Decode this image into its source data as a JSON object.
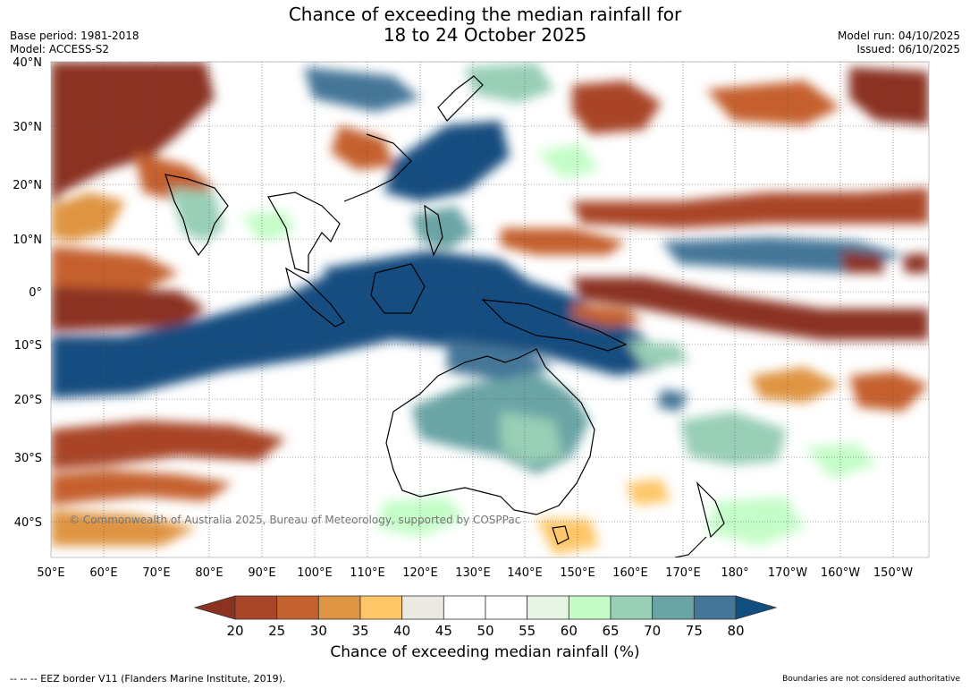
{
  "title": {
    "line1": "Chance of exceeding the median rainfall for",
    "line2": "18 to 24 October 2025"
  },
  "meta_left": {
    "base_period": "Base period: 1981-2018",
    "model": "Model: ACCESS-S2"
  },
  "meta_right": {
    "model_run": "Model run: 04/10/2025",
    "issued": "Issued: 06/10/2025"
  },
  "map": {
    "lat_labels": [
      "40°N",
      "30°N",
      "20°N",
      "10°N",
      "0°",
      "10°S",
      "20°S",
      "30°S",
      "40°S"
    ],
    "lon_labels": [
      "50°E",
      "60°E",
      "70°E",
      "80°E",
      "90°E",
      "100°E",
      "110°E",
      "120°E",
      "130°E",
      "140°E",
      "150°E",
      "160°E",
      "170°E",
      "180°",
      "170°W",
      "160°W",
      "150°W"
    ],
    "copyright": "© Commonwealth of Australia 2025, Bureau of Meteorology, supported by COSPPac"
  },
  "legend": {
    "title": "Chance of exceeding median rainfall (%)",
    "ticks": [
      "20",
      "25",
      "30",
      "35",
      "40",
      "45",
      "50",
      "55",
      "60",
      "65",
      "70",
      "75",
      "80"
    ],
    "colors": [
      "#8b3220",
      "#a94528",
      "#c5612f",
      "#df9443",
      "#fec667",
      "#ece9e2",
      "#ffffff",
      "#ffffff",
      "#e7f5e4",
      "#c5fdc8",
      "#98cfb6",
      "#6aa4a5",
      "#447698",
      "#124e80"
    ]
  },
  "footer": {
    "left": "--  --  -- EEZ border V11 (Flanders Marine Institute, 2019).",
    "right": "Boundaries are not considered authoritative"
  }
}
